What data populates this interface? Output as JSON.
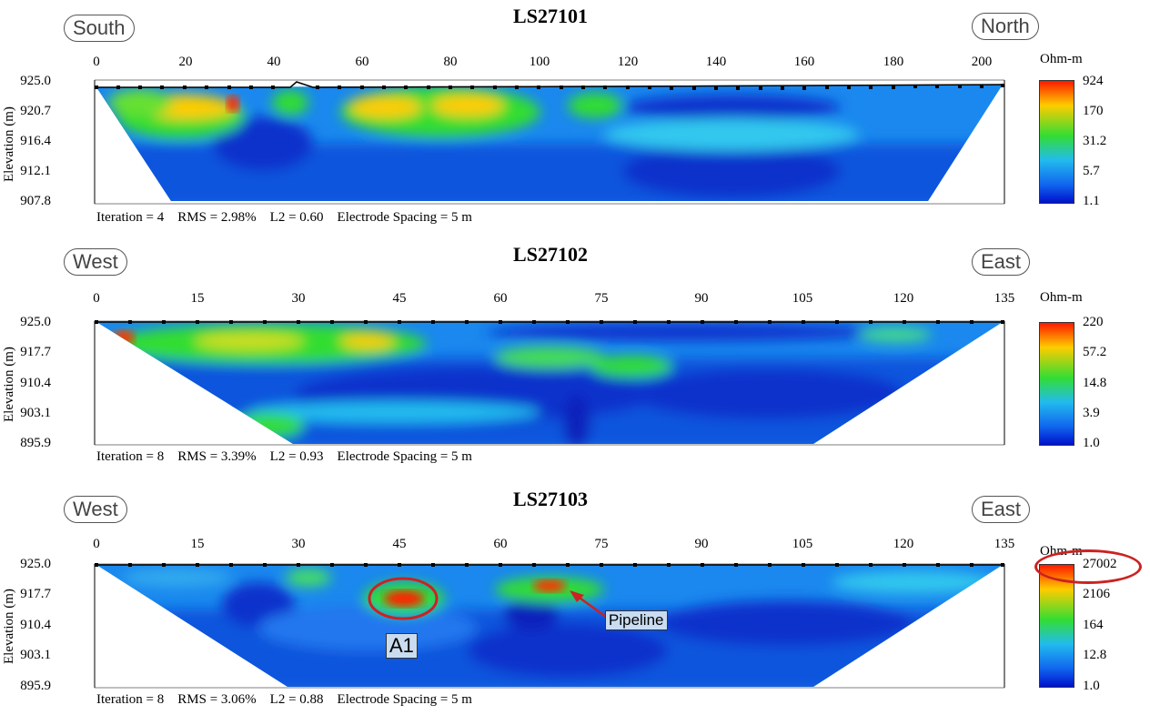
{
  "panels": [
    {
      "title": "LS27101",
      "left_dir": "South",
      "right_dir": "North",
      "ylabel": "Elevation (m)",
      "xticks": [
        "0",
        "20",
        "40",
        "60",
        "80",
        "100",
        "120",
        "140",
        "160",
        "180",
        "200"
      ],
      "yticks": [
        "925.0",
        "920.7",
        "916.4",
        "912.1",
        "907.8"
      ],
      "stats": "Iteration = 4    RMS = 2.98%    L2 = 0.60    Electrode Spacing = 5 m",
      "unit": "Ohm-m",
      "colorbar": [
        "924",
        "170",
        "31.2",
        "5.7",
        "1.1"
      ]
    },
    {
      "title": "LS27102",
      "left_dir": "West",
      "right_dir": "East",
      "ylabel": "Elevation (m)",
      "xticks": [
        "0",
        "15",
        "30",
        "45",
        "60",
        "75",
        "90",
        "105",
        "120",
        "135"
      ],
      "yticks": [
        "925.0",
        "917.7",
        "910.4",
        "903.1",
        "895.9"
      ],
      "stats": "Iteration = 8    RMS = 3.39%    L2 = 0.93    Electrode Spacing = 5 m",
      "unit": "Ohm-m",
      "colorbar": [
        "220",
        "57.2",
        "14.8",
        "3.9",
        "1.0"
      ]
    },
    {
      "title": "LS27103",
      "left_dir": "West",
      "right_dir": "East",
      "ylabel": "Elevation (m)",
      "xticks": [
        "0",
        "15",
        "30",
        "45",
        "60",
        "75",
        "90",
        "105",
        "120",
        "135"
      ],
      "yticks": [
        "925.0",
        "917.7",
        "910.4",
        "903.1",
        "895.9"
      ],
      "stats": "Iteration = 8    RMS = 3.06%    L2 = 0.88    Electrode Spacing = 5 m",
      "unit": "Ohm-m",
      "colorbar": [
        "27002",
        "2106",
        "164",
        "12.8",
        "1.0"
      ],
      "annotations": [
        "A1",
        "Pipeline"
      ]
    }
  ],
  "colors": {
    "scale": [
      "#ff1a00",
      "#ffcc00",
      "#33dd33",
      "#22bbee",
      "#1166ee",
      "#0011cc"
    ],
    "annotation": "#cc2222"
  },
  "chart_data": [
    {
      "type": "heatmap",
      "title": "LS27101",
      "xlabel": "",
      "ylabel": "Elevation (m)",
      "xlim": [
        0,
        205
      ],
      "ylim": [
        907.8,
        925.0
      ],
      "colorbar_unit": "Ohm-m",
      "colorbar_ticks": [
        924,
        170,
        31.2,
        5.7,
        1.1
      ],
      "iteration": 4,
      "rms_percent": 2.98,
      "l2": 0.6,
      "electrode_spacing_m": 5
    },
    {
      "type": "heatmap",
      "title": "LS27102",
      "xlabel": "",
      "ylabel": "Elevation (m)",
      "xlim": [
        0,
        135
      ],
      "ylim": [
        895.9,
        925.0
      ],
      "colorbar_unit": "Ohm-m",
      "colorbar_ticks": [
        220,
        57.2,
        14.8,
        3.9,
        1.0
      ],
      "iteration": 8,
      "rms_percent": 3.39,
      "l2": 0.93,
      "electrode_spacing_m": 5
    },
    {
      "type": "heatmap",
      "title": "LS27103",
      "xlabel": "",
      "ylabel": "Elevation (m)",
      "xlim": [
        0,
        135
      ],
      "ylim": [
        895.9,
        925.0
      ],
      "colorbar_unit": "Ohm-m",
      "colorbar_ticks": [
        27002,
        2106,
        164,
        12.8,
        1.0
      ],
      "iteration": 8,
      "rms_percent": 3.06,
      "l2": 0.88,
      "electrode_spacing_m": 5,
      "annotations": [
        {
          "label": "A1",
          "x": 46,
          "elevation": 917
        },
        {
          "label": "Pipeline",
          "x": 68,
          "elevation": 920
        }
      ]
    }
  ]
}
